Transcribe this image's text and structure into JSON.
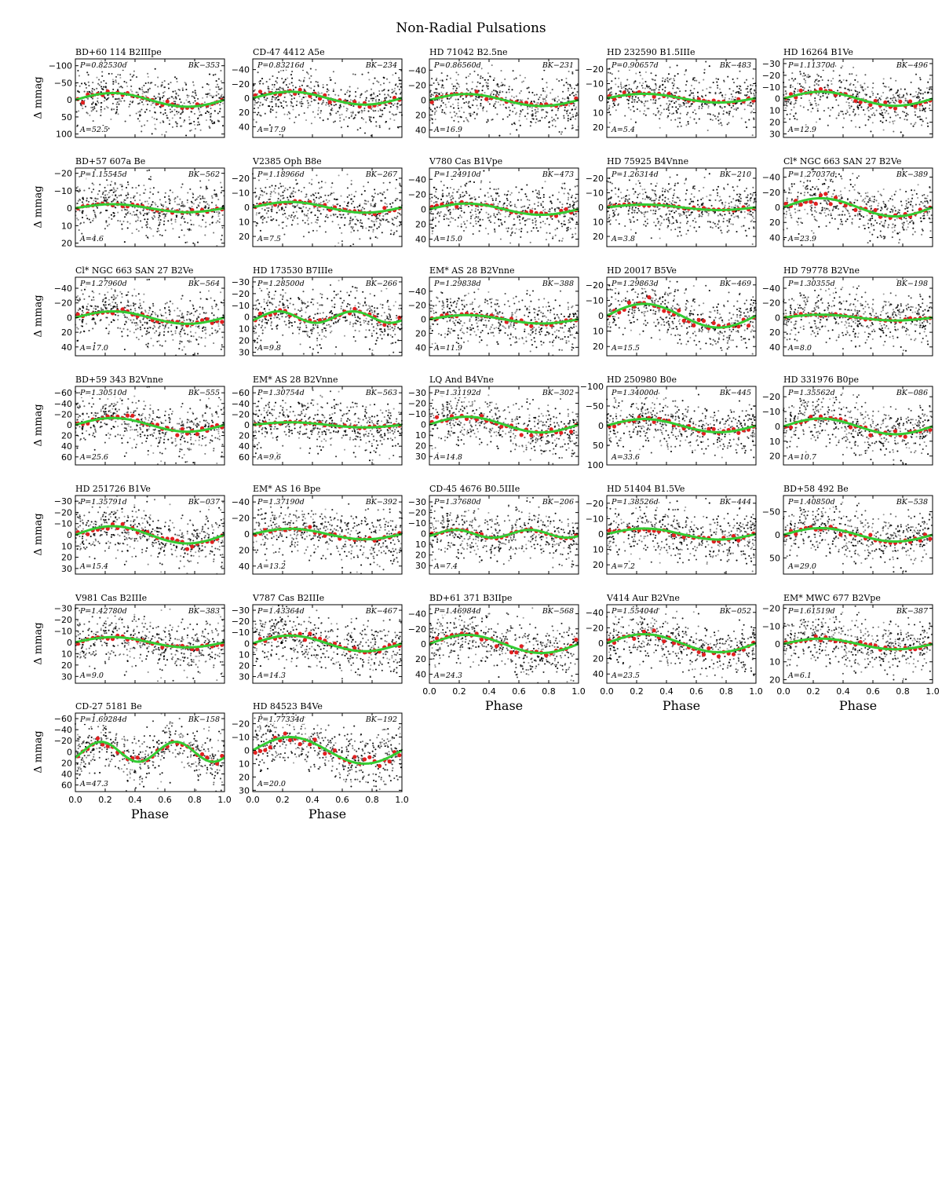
{
  "figure": {
    "title": "Non-Radial Pulsations",
    "ylabel": "Δ mmag",
    "xlabel": "Phase"
  },
  "colors": {
    "points": "#000000",
    "binned": "#e02020",
    "fit": "#33cc33"
  },
  "chart_data": {
    "type": "scatter",
    "x_range": [
      0.0,
      1.0
    ],
    "x_ticks": [
      "0.0",
      "0.2",
      "0.4",
      "0.6",
      "0.8",
      "1.0"
    ],
    "y_inverted": true,
    "panels": [
      {
        "name": "BD+60 114  B2IIIpe",
        "period": "P=0.82530d",
        "id": "BK−353",
        "amp": "A=52.5",
        "ylim": [
          -120,
          110
        ],
        "yticks": [
          -100,
          -50,
          0,
          50,
          100
        ],
        "ytick_labels": [
          "−100",
          "−50",
          "0",
          "50",
          "100"
        ],
        "amplitude": 20,
        "harmonic": 1
      },
      {
        "name": "CD-47 4412  A5e",
        "period": "P=0.83216d",
        "id": "BK−234",
        "amp": "A=17.9",
        "ylim": [
          -55,
          55
        ],
        "yticks": [
          -40,
          -20,
          0,
          20,
          40
        ],
        "ytick_labels": [
          "−40",
          "−20",
          "0",
          "20",
          "40"
        ],
        "amplitude": 9,
        "harmonic": 1
      },
      {
        "name": "HD 71042  B2.5ne",
        "period": "P=0.86560d",
        "id": "BK−231",
        "amp": "A=16.9",
        "ylim": [
          -55,
          50
        ],
        "yticks": [
          -40,
          -20,
          0,
          20,
          40
        ],
        "ytick_labels": [
          "−40",
          "−20",
          "0",
          "20",
          "40"
        ],
        "amplitude": 8,
        "harmonic": 1
      },
      {
        "name": "HD 232590  B1.5IIIe",
        "period": "P=0.90657d",
        "id": "BK−483",
        "amp": "A=5.4",
        "ylim": [
          -27,
          27
        ],
        "yticks": [
          -20,
          -10,
          0,
          10,
          20
        ],
        "ytick_labels": [
          "−20",
          "−10",
          "0",
          "10",
          "20"
        ],
        "amplitude": 3,
        "harmonic": 1
      },
      {
        "name": "HD 16264  B1Ve",
        "period": "P=1.11370d",
        "id": "BK−496",
        "amp": "A=12.9",
        "ylim": [
          -34,
          33
        ],
        "yticks": [
          -30,
          -20,
          -10,
          0,
          10,
          20,
          30
        ],
        "ytick_labels": [
          "−30",
          "−20",
          "−10",
          "0",
          "10",
          "20",
          "30"
        ],
        "amplitude": 6,
        "harmonic": 1
      },
      {
        "name": "BD+57 607a  Be",
        "period": "P=1.15545d",
        "id": "BK−562",
        "amp": "A=4.6",
        "ylim": [
          -23,
          22
        ],
        "yticks": [
          -20,
          -10,
          0,
          10,
          20
        ],
        "ytick_labels": [
          "−20",
          "−10",
          "0",
          "10",
          "20"
        ],
        "amplitude": 2.3,
        "harmonic": 1
      },
      {
        "name": "V2385 Oph  B8e",
        "period": "P=1.18966d",
        "id": "BK−267",
        "amp": "A=7.5",
        "ylim": [
          -27,
          27
        ],
        "yticks": [
          -20,
          -10,
          0,
          10,
          20
        ],
        "ytick_labels": [
          "−20",
          "−10",
          "0",
          "10",
          "20"
        ],
        "amplitude": 3.7,
        "harmonic": 1
      },
      {
        "name": "V780 Cas  B1Vpe",
        "period": "P=1.24910d",
        "id": "BK−473",
        "amp": "A=15.0",
        "ylim": [
          -55,
          50
        ],
        "yticks": [
          -40,
          -20,
          0,
          20,
          40
        ],
        "ytick_labels": [
          "−40",
          "−20",
          "0",
          "20",
          "40"
        ],
        "amplitude": 7.5,
        "harmonic": 1
      },
      {
        "name": "HD 75925  B4Vnne",
        "period": "P=1.26314d",
        "id": "BK−210",
        "amp": "A=3.8",
        "ylim": [
          -27,
          27
        ],
        "yticks": [
          -20,
          -10,
          0,
          10,
          20
        ],
        "ytick_labels": [
          "−20",
          "−10",
          "0",
          "10",
          "20"
        ],
        "amplitude": 1.9,
        "harmonic": 1
      },
      {
        "name": "Cl* NGC 663 SAN 27  B2Ve",
        "period": "P=1.27037d",
        "id": "BK−389",
        "amp": "A=23.9",
        "ylim": [
          -52,
          52
        ],
        "yticks": [
          -40,
          -20,
          0,
          20,
          40
        ],
        "ytick_labels": [
          "−40",
          "−20",
          "0",
          "20",
          "40"
        ],
        "amplitude": 12,
        "harmonic": 1
      },
      {
        "name": "Cl* NGC 663 SAN 27  B2Ve",
        "period": "P=1.27960d",
        "id": "BK−564",
        "amp": "A=17.0",
        "ylim": [
          -55,
          52
        ],
        "yticks": [
          -40,
          -20,
          0,
          20,
          40
        ],
        "ytick_labels": [
          "−40",
          "−20",
          "0",
          "20",
          "40"
        ],
        "amplitude": 8.5,
        "harmonic": 1
      },
      {
        "name": "HD 173530  B7IIIe",
        "period": "P=1.28500d",
        "id": "BK−266",
        "amp": "A=9.8",
        "ylim": [
          -34,
          33
        ],
        "yticks": [
          -30,
          -20,
          -10,
          0,
          10,
          20,
          30
        ],
        "ytick_labels": [
          "−30",
          "−20",
          "−10",
          "0",
          "10",
          "20",
          "30"
        ],
        "amplitude": 4.9,
        "harmonic": 2
      },
      {
        "name": "EM* AS 28  B2Vnne",
        "period": "P=1.29838d",
        "id": "BK−388",
        "amp": "A=11.9",
        "ylim": [
          -60,
          52
        ],
        "yticks": [
          -40,
          -20,
          0,
          20,
          40
        ],
        "ytick_labels": [
          "−40",
          "−20",
          "0",
          "20",
          "40"
        ],
        "amplitude": 6,
        "harmonic": 1
      },
      {
        "name": "HD 20017  B5Ve",
        "period": "P=1.29863d",
        "id": "BK−469",
        "amp": "A=15.5",
        "ylim": [
          -25,
          26
        ],
        "yticks": [
          -20,
          -10,
          0,
          10,
          20
        ],
        "ytick_labels": [
          "−20",
          "−10",
          "0",
          "10",
          "20"
        ],
        "amplitude": 7.7,
        "harmonic": 1
      },
      {
        "name": "HD 79778  B2Vne",
        "period": "P=1.30355d",
        "id": "BK−198",
        "amp": "A=8.0",
        "ylim": [
          -55,
          52
        ],
        "yticks": [
          -40,
          -20,
          0,
          20,
          40
        ],
        "ytick_labels": [
          "−40",
          "−20",
          "0",
          "20",
          "40"
        ],
        "amplitude": 4,
        "harmonic": 1
      },
      {
        "name": "BD+59 343  B2Vnne",
        "period": "P=1.30510d",
        "id": "BK−555",
        "amp": "A=25.6",
        "ylim": [
          -72,
          75
        ],
        "yticks": [
          -60,
          -40,
          -20,
          0,
          20,
          40,
          60
        ],
        "ytick_labels": [
          "−60",
          "−40",
          "−20",
          "0",
          "20",
          "40",
          "60"
        ],
        "amplitude": 12.8,
        "harmonic": 1
      },
      {
        "name": "EM* AS 28  B2Vnne",
        "period": "P=1.30754d",
        "id": "BK−563",
        "amp": "A=9.6",
        "ylim": [
          -72,
          75
        ],
        "yticks": [
          -60,
          -40,
          -20,
          0,
          20,
          40,
          60
        ],
        "ytick_labels": [
          "−60",
          "−40",
          "−20",
          "0",
          "20",
          "40",
          "60"
        ],
        "amplitude": 4.8,
        "harmonic": 1
      },
      {
        "name": "LQ And  B4Vne",
        "period": "P=1.31192d",
        "id": "BK−302",
        "amp": "A=14.8",
        "ylim": [
          -36,
          38
        ],
        "yticks": [
          -30,
          -20,
          -10,
          0,
          10,
          20,
          30
        ],
        "ytick_labels": [
          "−30",
          "−20",
          "−10",
          "0",
          "10",
          "20",
          "30"
        ],
        "amplitude": 7.4,
        "harmonic": 1
      },
      {
        "name": "HD 250980  B0e",
        "period": "P=1.34000d",
        "id": "BK−445",
        "amp": "A=33.6",
        "ylim": [
          -100,
          100
        ],
        "yticks": [
          -100,
          -50,
          0,
          50,
          100
        ],
        "ytick_labels": [
          "−100",
          "−50",
          "0",
          "50",
          "100"
        ],
        "amplitude": 16.8,
        "harmonic": 1
      },
      {
        "name": "HD 331976  B0pe",
        "period": "P=1.35562d",
        "id": "BK−086",
        "amp": "A=10.7",
        "ylim": [
          -27,
          26
        ],
        "yticks": [
          -20,
          -10,
          0,
          10,
          20
        ],
        "ytick_labels": [
          "−20",
          "−10",
          "0",
          "10",
          "20"
        ],
        "amplitude": 5.3,
        "harmonic": 1
      },
      {
        "name": "HD 251726  B1Ve",
        "period": "P=1.35791d",
        "id": "BK−037",
        "amp": "A=15.4",
        "ylim": [
          -35,
          35
        ],
        "yticks": [
          -30,
          -20,
          -10,
          0,
          10,
          20,
          30
        ],
        "ytick_labels": [
          "−30",
          "−20",
          "−10",
          "0",
          "10",
          "20",
          "30"
        ],
        "amplitude": 7.7,
        "harmonic": 1
      },
      {
        "name": "EM* AS 16  Bpe",
        "period": "P=1.37190d",
        "id": "BK−392",
        "amp": "A=13.2",
        "ylim": [
          -48,
          50
        ],
        "yticks": [
          -40,
          -20,
          0,
          20,
          40
        ],
        "ytick_labels": [
          "−40",
          "−20",
          "0",
          "20",
          "40"
        ],
        "amplitude": 6.6,
        "harmonic": 1
      },
      {
        "name": "CD-45 4676  B0.5IIIe",
        "period": "P=1.37680d",
        "id": "BK−206",
        "amp": "A=7.4",
        "ylim": [
          -36,
          38
        ],
        "yticks": [
          -30,
          -20,
          -10,
          0,
          10,
          20,
          30
        ],
        "ytick_labels": [
          "−30",
          "−20",
          "−10",
          "0",
          "10",
          "20",
          "30"
        ],
        "amplitude": 3.7,
        "harmonic": 2
      },
      {
        "name": "HD 51404  B1.5Ve",
        "period": "P=1.38526d",
        "id": "BK−444",
        "amp": "A=7.2",
        "ylim": [
          -25,
          26
        ],
        "yticks": [
          -20,
          -10,
          0,
          10,
          20
        ],
        "ytick_labels": [
          "−20",
          "−10",
          "0",
          "10",
          "20"
        ],
        "amplitude": 3.6,
        "harmonic": 1
      },
      {
        "name": "BD+58 492  Be",
        "period": "P=1.40850d",
        "id": "BK−538",
        "amp": "A=29.0",
        "ylim": [
          -85,
          85
        ],
        "yticks": [
          -50,
          0,
          50
        ],
        "ytick_labels": [
          "−50",
          "0",
          "50"
        ],
        "amplitude": 14.5,
        "harmonic": 1
      },
      {
        "name": "V981 Cas  B2IIIe",
        "period": "P=1.42780d",
        "id": "BK−383",
        "amp": "A=9.0",
        "ylim": [
          -33,
          36
        ],
        "yticks": [
          -30,
          -20,
          -10,
          0,
          10,
          20,
          30
        ],
        "ytick_labels": [
          "−30",
          "−20",
          "−10",
          "0",
          "10",
          "20",
          "30"
        ],
        "amplitude": 4.5,
        "harmonic": 1
      },
      {
        "name": "V787 Cas  B2IIIe",
        "period": "P=1.43364d",
        "id": "BK−467",
        "amp": "A=14.3",
        "ylim": [
          -35,
          36
        ],
        "yticks": [
          -30,
          -20,
          -10,
          0,
          10,
          20,
          30
        ],
        "ytick_labels": [
          "−30",
          "−20",
          "−10",
          "0",
          "10",
          "20",
          "30"
        ],
        "amplitude": 7.1,
        "harmonic": 1
      },
      {
        "name": "BD+61 371  B3IIpe",
        "period": "P=1.46984d",
        "id": "BK−568",
        "amp": "A=24.3",
        "ylim": [
          -52,
          52
        ],
        "yticks": [
          -40,
          -20,
          0,
          20,
          40
        ],
        "ytick_labels": [
          "−40",
          "−20",
          "0",
          "20",
          "40"
        ],
        "amplitude": 12,
        "harmonic": 1
      },
      {
        "name": "V414 Aur  B2Vne",
        "period": "P=1.55404d",
        "id": "BK−052",
        "amp": "A=23.5",
        "ylim": [
          -50,
          52
        ],
        "yticks": [
          -40,
          -20,
          0,
          20,
          40
        ],
        "ytick_labels": [
          "−40",
          "−20",
          "0",
          "20",
          "40"
        ],
        "amplitude": 11.7,
        "harmonic": 1
      },
      {
        "name": "EM* MWC 677  B2Vpe",
        "period": "P=1.61519d",
        "id": "BK−387",
        "amp": "A=6.1",
        "ylim": [
          -22,
          22
        ],
        "yticks": [
          -20,
          -10,
          0,
          10,
          20
        ],
        "ytick_labels": [
          "−20",
          "−10",
          "0",
          "10",
          "20"
        ],
        "amplitude": 3,
        "harmonic": 1
      },
      {
        "name": "CD-27 5181  Be",
        "period": "P=1.69284d",
        "id": "BK−158",
        "amp": "A=47.3",
        "ylim": [
          -70,
          72
        ],
        "yticks": [
          -60,
          -40,
          -20,
          0,
          20,
          40,
          60
        ],
        "ytick_labels": [
          "−60",
          "−40",
          "−20",
          "0",
          "20",
          "40",
          "60"
        ],
        "amplitude": 18,
        "harmonic": 2
      },
      {
        "name": "HD 84523  B4Ve",
        "period": "P=1.77334d",
        "id": "BK−192",
        "amp": "A=20.0",
        "ylim": [
          -28,
          31
        ],
        "yticks": [
          -20,
          -10,
          0,
          10,
          20,
          30
        ],
        "ytick_labels": [
          "−20",
          "−10",
          "0",
          "10",
          "20",
          "30"
        ],
        "amplitude": 10,
        "harmonic": 1
      }
    ]
  }
}
